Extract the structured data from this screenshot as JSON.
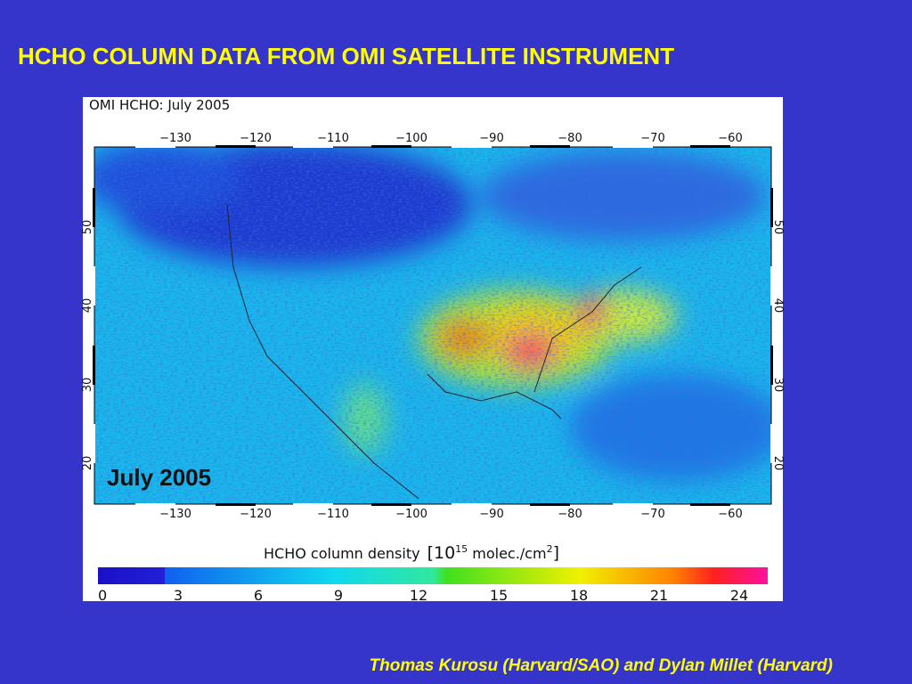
{
  "header": {
    "title": "HCHO COLUMN DATA FROM OMI SATELLITE INSTRUMENT"
  },
  "figure": {
    "panel_title": "OMI HCHO: July 2005",
    "longitude_labels": [
      "−130",
      "−120",
      "−110",
      "−100",
      "−90",
      "−80",
      "−70",
      "−60"
    ],
    "latitude_labels": [
      "50",
      "40",
      "30",
      "20"
    ],
    "inset_label": "July 2005",
    "colorbar": {
      "label": "HCHO column density",
      "unit_open": "[10",
      "unit_exp": "15",
      "unit_mid": " molec./cm",
      "unit_exp2": "2",
      "unit_close": "]",
      "ticks": [
        0,
        3,
        6,
        9,
        12,
        15,
        18,
        21,
        24
      ]
    }
  },
  "footer": {
    "credit": "Thomas Kurosu (Harvard/SAO) and Dylan Millet (Harvard)"
  }
}
